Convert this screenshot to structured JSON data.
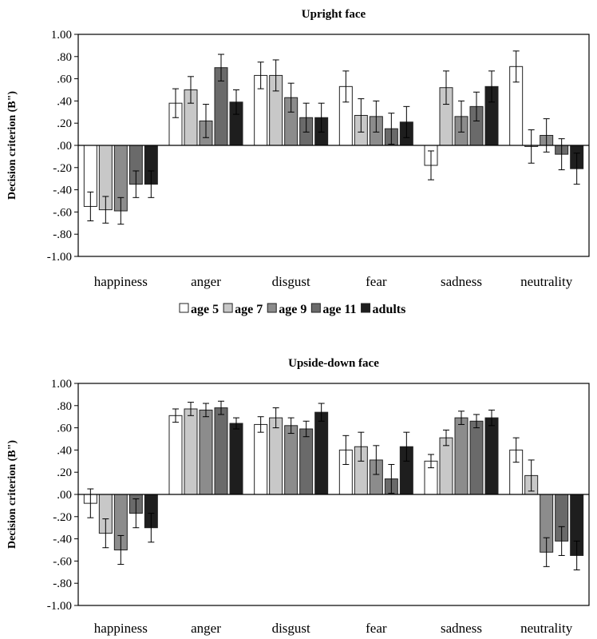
{
  "series_colors": [
    "#ffffff",
    "#c8c8c8",
    "#8c8c8c",
    "#6a6a6a",
    "#1e1e1e"
  ],
  "legend": {
    "entries": [
      "age 5",
      "age 7",
      "age 9",
      "age 11",
      "adults"
    ]
  },
  "chart_data": [
    {
      "type": "bar",
      "title": "Upright face",
      "ylabel": "Decision criterion (B\")",
      "xlabel": "",
      "ylim": [
        -1.0,
        1.0
      ],
      "yticks": [
        "1.00",
        ".80",
        ".60",
        ".40",
        ".20",
        ".00",
        "-.20",
        "-.40",
        "-.60",
        "-.80",
        "-1.00"
      ],
      "categories": [
        "happiness",
        "anger",
        "disgust",
        "fear",
        "sadness",
        "neutrality"
      ],
      "series": [
        {
          "name": "age 5",
          "values": [
            -0.55,
            0.38,
            0.63,
            0.53,
            -0.18,
            0.71
          ],
          "errors": [
            0.13,
            0.13,
            0.12,
            0.14,
            0.13,
            0.14
          ]
        },
        {
          "name": "age 7",
          "values": [
            -0.58,
            0.5,
            0.63,
            0.27,
            0.52,
            -0.01
          ],
          "errors": [
            0.12,
            0.12,
            0.14,
            0.15,
            0.15,
            0.15
          ]
        },
        {
          "name": "age 9",
          "values": [
            -0.59,
            0.22,
            0.43,
            0.26,
            0.26,
            0.09
          ],
          "errors": [
            0.12,
            0.15,
            0.13,
            0.14,
            0.14,
            0.15
          ]
        },
        {
          "name": "age 11",
          "values": [
            -0.35,
            0.7,
            0.25,
            0.15,
            0.35,
            -0.08
          ],
          "errors": [
            0.12,
            0.12,
            0.13,
            0.14,
            0.13,
            0.14
          ]
        },
        {
          "name": "adults",
          "values": [
            -0.35,
            0.39,
            0.25,
            0.21,
            0.53,
            -0.21
          ],
          "errors": [
            0.12,
            0.11,
            0.13,
            0.14,
            0.14,
            0.14
          ]
        }
      ]
    },
    {
      "type": "bar",
      "title": "Upside-down face",
      "ylabel": "Decision criterion (B\")",
      "xlabel": "",
      "ylim": [
        -1.0,
        1.0
      ],
      "yticks": [
        "1.00",
        ".80",
        ".60",
        ".40",
        ".20",
        ".00",
        "-.20",
        "-.40",
        "-.60",
        "-.80",
        "-1.00"
      ],
      "categories": [
        "happiness",
        "anger",
        "disgust",
        "fear",
        "sadness",
        "neutrality"
      ],
      "series": [
        {
          "name": "age 5",
          "values": [
            -0.08,
            0.71,
            0.63,
            0.4,
            0.3,
            0.4
          ],
          "errors": [
            0.13,
            0.06,
            0.07,
            0.13,
            0.06,
            0.11
          ]
        },
        {
          "name": "age 7",
          "values": [
            -0.35,
            0.77,
            0.69,
            0.43,
            0.51,
            0.17
          ],
          "errors": [
            0.13,
            0.06,
            0.09,
            0.13,
            0.07,
            0.14
          ]
        },
        {
          "name": "age 9",
          "values": [
            -0.5,
            0.76,
            0.62,
            0.31,
            0.69,
            -0.52
          ],
          "errors": [
            0.13,
            0.06,
            0.07,
            0.13,
            0.06,
            0.13
          ]
        },
        {
          "name": "age 11",
          "values": [
            -0.17,
            0.78,
            0.59,
            0.14,
            0.66,
            -0.42
          ],
          "errors": [
            0.13,
            0.06,
            0.07,
            0.13,
            0.06,
            0.13
          ]
        },
        {
          "name": "adults",
          "values": [
            -0.3,
            0.64,
            0.74,
            0.43,
            0.69,
            -0.55
          ],
          "errors": [
            0.13,
            0.05,
            0.08,
            0.13,
            0.07,
            0.13
          ]
        }
      ]
    }
  ]
}
